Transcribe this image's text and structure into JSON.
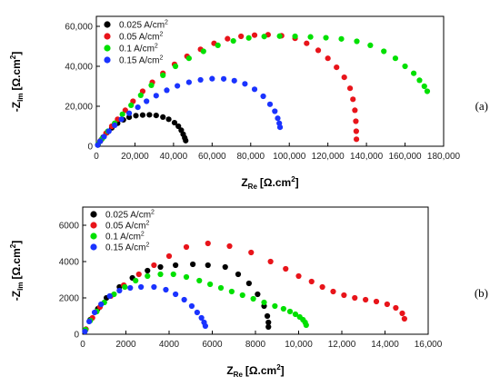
{
  "chart_data": [
    {
      "type": "scatter",
      "panel_label": "(a)",
      "xlabel_main": "Z",
      "xlabel_sub": "Re",
      "xlabel_unit": "[Ω.cm",
      "ylabel_main": "-Z",
      "ylabel_sub": "Im",
      "ylabel_unit": "[Ω.cm",
      "unit_sup": "2",
      "unit_close": "]",
      "xlim": [
        0,
        180000
      ],
      "ylim": [
        0,
        65000
      ],
      "xticks": [
        "0",
        "20,000",
        "40,000",
        "60,000",
        "80,000",
        "100,000",
        "120,000",
        "140,000",
        "160,000",
        "180,000"
      ],
      "yticks": [
        "0",
        "20,000",
        "40,000",
        "60,000"
      ],
      "legend_position": "top-left",
      "series": [
        {
          "name": "0.025 A/cm",
          "name_sup": "2",
          "color": "#000000",
          "points": [
            [
              800,
              600
            ],
            [
              2000,
              2500
            ],
            [
              3500,
              4500
            ],
            [
              5500,
              6800
            ],
            [
              8000,
              9200
            ],
            [
              11000,
              11500
            ],
            [
              14000,
              13200
            ],
            [
              17000,
              14500
            ],
            [
              20500,
              15300
            ],
            [
              24000,
              15600
            ],
            [
              27500,
              15700
            ],
            [
              31000,
              15400
            ],
            [
              34500,
              14600
            ],
            [
              37500,
              13500
            ],
            [
              40500,
              11800
            ],
            [
              42500,
              10000
            ],
            [
              44000,
              8000
            ],
            [
              45000,
              6000
            ],
            [
              45800,
              4200
            ],
            [
              46300,
              2800
            ]
          ]
        },
        {
          "name": "0.05 A/cm",
          "name_sup": "2",
          "color": "#e8141a",
          "points": [
            [
              800,
              800
            ],
            [
              2500,
              3200
            ],
            [
              5000,
              6500
            ],
            [
              8000,
              10000
            ],
            [
              11000,
              13500
            ],
            [
              15000,
              18000
            ],
            [
              19000,
              22500
            ],
            [
              24000,
              27500
            ],
            [
              29000,
              32000
            ],
            [
              34500,
              36500
            ],
            [
              40500,
              41000
            ],
            [
              47000,
              45000
            ],
            [
              54000,
              48500
            ],
            [
              61000,
              51500
            ],
            [
              68000,
              53800
            ],
            [
              75000,
              55000
            ],
            [
              82000,
              55600
            ],
            [
              89000,
              55800
            ],
            [
              96000,
              55300
            ],
            [
              103000,
              54000
            ],
            [
              109000,
              51500
            ],
            [
              115000,
              48000
            ],
            [
              120000,
              44000
            ],
            [
              124500,
              39500
            ],
            [
              128500,
              34500
            ],
            [
              131500,
              29000
            ],
            [
              133000,
              23500
            ],
            [
              134000,
              18000
            ],
            [
              134500,
              12500
            ],
            [
              134700,
              7500
            ],
            [
              134800,
              3500
            ]
          ]
        },
        {
          "name": "0.1 A/cm",
          "name_sup": "2",
          "color": "#00e000",
          "points": [
            [
              900,
              1000
            ],
            [
              3000,
              3800
            ],
            [
              6000,
              7500
            ],
            [
              9500,
              11500
            ],
            [
              13500,
              16000
            ],
            [
              18000,
              20500
            ],
            [
              23000,
              25500
            ],
            [
              28500,
              30500
            ],
            [
              34500,
              35500
            ],
            [
              41000,
              40000
            ],
            [
              48000,
              44000
            ],
            [
              55500,
              47500
            ],
            [
              63000,
              50500
            ],
            [
              71000,
              52700
            ],
            [
              79000,
              54200
            ],
            [
              87000,
              54900
            ],
            [
              95000,
              55100
            ],
            [
              103000,
              55000
            ],
            [
              111000,
              54700
            ],
            [
              119000,
              54300
            ],
            [
              127000,
              53700
            ],
            [
              135000,
              52500
            ],
            [
              142000,
              50500
            ],
            [
              149000,
              47500
            ],
            [
              155000,
              44000
            ],
            [
              160000,
              40000
            ],
            [
              164500,
              36500
            ],
            [
              167500,
              33000
            ],
            [
              170000,
              30000
            ],
            [
              171500,
              27500
            ]
          ]
        },
        {
          "name": "0.15 A/cm",
          "name_sup": "2",
          "color": "#1a33ff",
          "points": [
            [
              700,
              600
            ],
            [
              2000,
              2500
            ],
            [
              4000,
              4800
            ],
            [
              6500,
              7500
            ],
            [
              9500,
              10500
            ],
            [
              13000,
              13500
            ],
            [
              17000,
              16500
            ],
            [
              21500,
              19500
            ],
            [
              26000,
              22500
            ],
            [
              31000,
              25300
            ],
            [
              36500,
              28000
            ],
            [
              42000,
              30200
            ],
            [
              48000,
              32000
            ],
            [
              54000,
              33200
            ],
            [
              60000,
              33800
            ],
            [
              66000,
              33700
            ],
            [
              71500,
              32800
            ],
            [
              77000,
              31200
            ],
            [
              82000,
              28500
            ],
            [
              86500,
              25000
            ],
            [
              90000,
              21000
            ],
            [
              92500,
              17500
            ],
            [
              94000,
              14000
            ],
            [
              94800,
              11500
            ],
            [
              95200,
              9500
            ]
          ]
        }
      ]
    },
    {
      "type": "scatter",
      "panel_label": "(b)",
      "xlabel_main": "Z",
      "xlabel_sub": "Re",
      "xlabel_unit": "[Ω.cm",
      "ylabel_main": "-Z",
      "ylabel_sub": "Im",
      "ylabel_unit": "[Ω.cm",
      "unit_sup": "2",
      "unit_close": "]",
      "xlim": [
        0,
        16000
      ],
      "ylim": [
        0,
        7000
      ],
      "xticks": [
        "0",
        "2000",
        "4000",
        "6000",
        "8000",
        "10,000",
        "12,000",
        "14,000",
        "16,000"
      ],
      "yticks": [
        "0",
        "2000",
        "4000",
        "6000"
      ],
      "legend_position": "top-left",
      "series": [
        {
          "name": "0.025 A/cm",
          "name_sup": "2",
          "color": "#000000",
          "points": [
            [
              120,
              220
            ],
            [
              350,
              800
            ],
            [
              700,
              1400
            ],
            [
              1100,
              2000
            ],
            [
              1700,
              2600
            ],
            [
              2300,
              3100
            ],
            [
              3000,
              3500
            ],
            [
              3600,
              3700
            ],
            [
              4300,
              3800
            ],
            [
              5100,
              3850
            ],
            [
              5800,
              3800
            ],
            [
              6600,
              3700
            ],
            [
              7200,
              3300
            ],
            [
              7700,
              2800
            ],
            [
              8100,
              2200
            ],
            [
              8400,
              1550
            ],
            [
              8550,
              1000
            ],
            [
              8600,
              650
            ],
            [
              8600,
              400
            ]
          ]
        },
        {
          "name": "0.05 A/cm",
          "name_sup": "2",
          "color": "#e8141a",
          "points": [
            [
              150,
              280
            ],
            [
              450,
              900
            ],
            [
              800,
              1500
            ],
            [
              1300,
              2100
            ],
            [
              1900,
              2700
            ],
            [
              2600,
              3300
            ],
            [
              3300,
              3800
            ],
            [
              4000,
              4300
            ],
            [
              4800,
              4800
            ],
            [
              5800,
              5000
            ],
            [
              6800,
              4850
            ],
            [
              7800,
              4500
            ],
            [
              8700,
              4000
            ],
            [
              9400,
              3600
            ],
            [
              10000,
              3200
            ],
            [
              10600,
              2900
            ],
            [
              11100,
              2600
            ],
            [
              11600,
              2350
            ],
            [
              12100,
              2150
            ],
            [
              12600,
              2000
            ],
            [
              13100,
              1900
            ],
            [
              13600,
              1800
            ],
            [
              14100,
              1650
            ],
            [
              14500,
              1450
            ],
            [
              14800,
              1150
            ],
            [
              14900,
              850
            ]
          ]
        },
        {
          "name": "0.1 A/cm",
          "name_sup": "2",
          "color": "#00e000",
          "points": [
            [
              130,
              250
            ],
            [
              350,
              750
            ],
            [
              650,
              1250
            ],
            [
              1000,
              1750
            ],
            [
              1450,
              2200
            ],
            [
              1950,
              2600
            ],
            [
              2450,
              2950
            ],
            [
              3000,
              3200
            ],
            [
              3600,
              3300
            ],
            [
              4200,
              3300
            ],
            [
              4800,
              3150
            ],
            [
              5400,
              2950
            ],
            [
              5900,
              2750
            ],
            [
              6400,
              2550
            ],
            [
              6900,
              2350
            ],
            [
              7400,
              2150
            ],
            [
              7900,
              1950
            ],
            [
              8400,
              1750
            ],
            [
              8900,
              1550
            ],
            [
              9300,
              1400
            ],
            [
              9600,
              1250
            ],
            [
              9850,
              1100
            ],
            [
              10050,
              950
            ],
            [
              10200,
              800
            ],
            [
              10300,
              650
            ],
            [
              10350,
              500
            ]
          ]
        },
        {
          "name": "0.15 A/cm",
          "name_sup": "2",
          "color": "#1a33ff",
          "points": [
            [
              100,
              150
            ],
            [
              300,
              700
            ],
            [
              550,
              1200
            ],
            [
              850,
              1650
            ],
            [
              1250,
              2100
            ],
            [
              1700,
              2400
            ],
            [
              2200,
              2550
            ],
            [
              2700,
              2600
            ],
            [
              3300,
              2600
            ],
            [
              3850,
              2450
            ],
            [
              4300,
              2200
            ],
            [
              4700,
              1900
            ],
            [
              5050,
              1550
            ],
            [
              5300,
              1200
            ],
            [
              5500,
              900
            ],
            [
              5620,
              650
            ],
            [
              5680,
              450
            ]
          ]
        }
      ]
    }
  ]
}
